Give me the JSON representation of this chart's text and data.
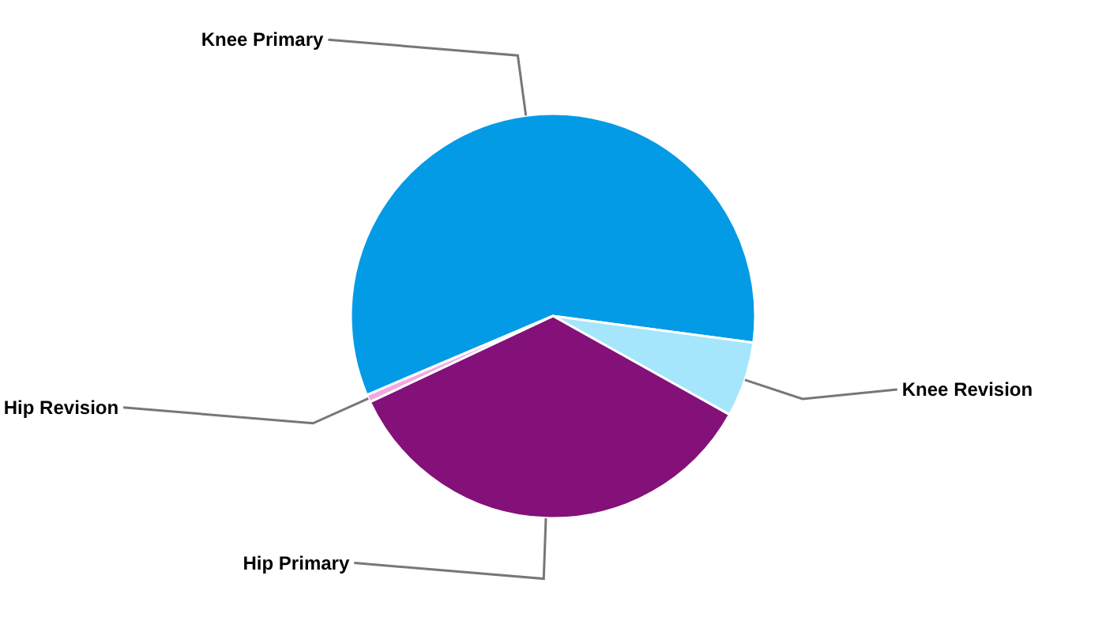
{
  "chart_data": {
    "type": "pie",
    "categories": [
      "Knee Primary",
      "Knee Revision",
      "Hip Primary",
      "Hip Revision"
    ],
    "values": [
      58.5,
      6,
      34.9,
      0.6
    ],
    "colors": [
      "#039be5",
      "#a6e6fc",
      "#84107a",
      "#f0a8e0"
    ]
  }
}
